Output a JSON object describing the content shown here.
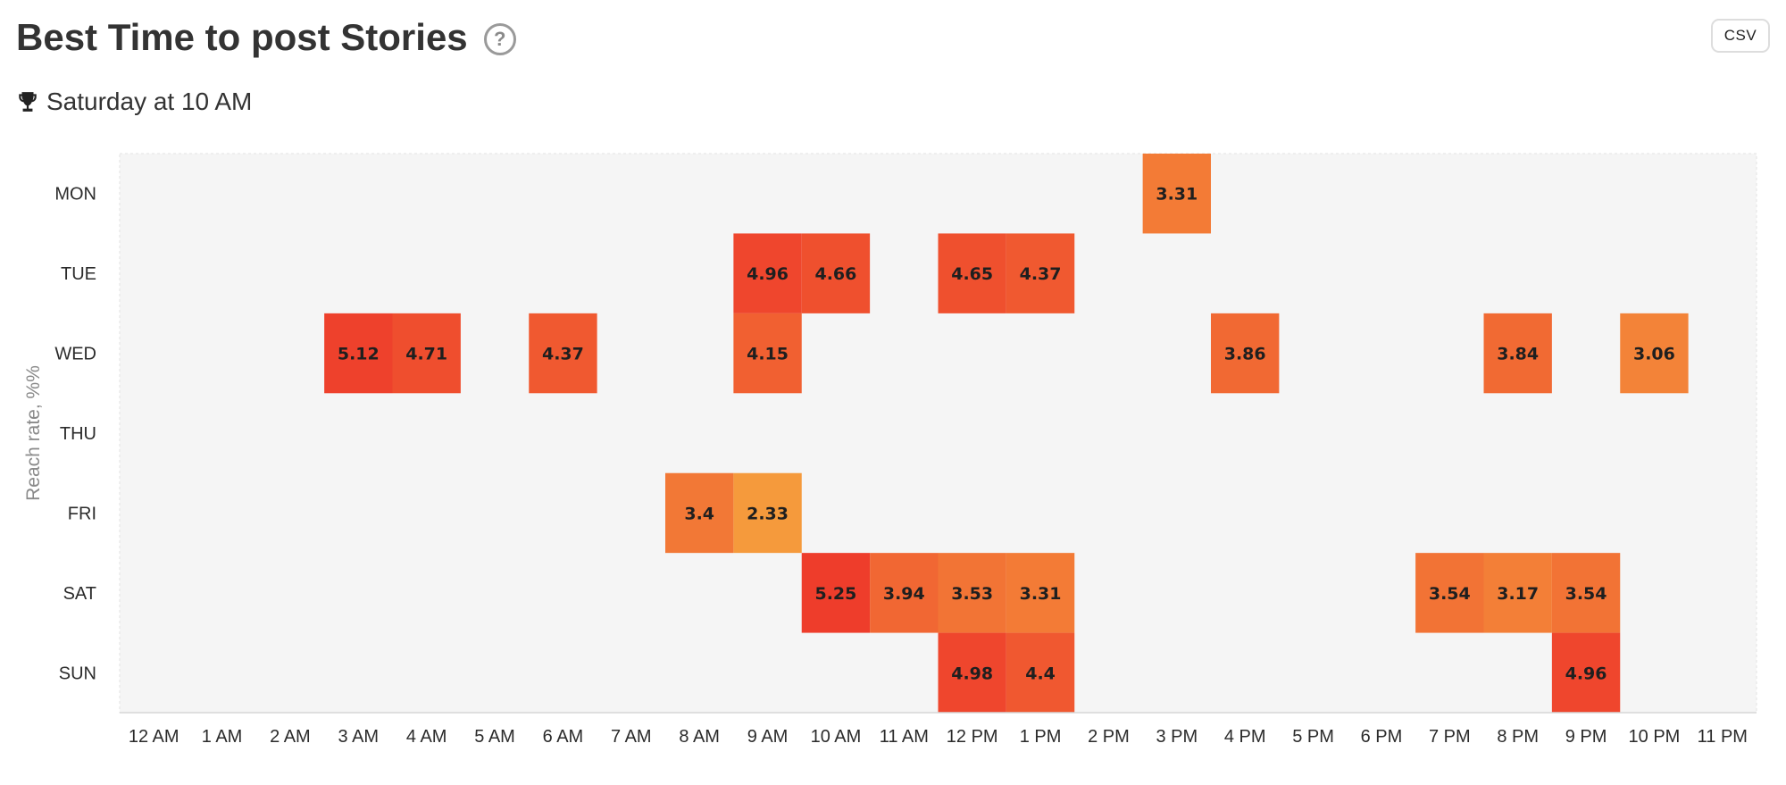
{
  "header": {
    "title": "Best Time to post Stories",
    "help_glyph": "?",
    "csv_label": "CSV"
  },
  "summary": {
    "best_time": "Saturday at 10 AM",
    "icon": "trophy-icon"
  },
  "chart_data": {
    "type": "heatmap",
    "ylabel": "Reach rate, %%",
    "rows": [
      "MON",
      "TUE",
      "WED",
      "THU",
      "FRI",
      "SAT",
      "SUN"
    ],
    "columns": [
      "12 AM",
      "1 AM",
      "2 AM",
      "3 AM",
      "4 AM",
      "5 AM",
      "6 AM",
      "7 AM",
      "8 AM",
      "9 AM",
      "10 AM",
      "11 AM",
      "12 PM",
      "1 PM",
      "2 PM",
      "3 PM",
      "4 PM",
      "5 PM",
      "6 PM",
      "7 PM",
      "8 PM",
      "9 PM",
      "10 PM",
      "11 PM"
    ],
    "cells": [
      {
        "row": "MON",
        "col": "3 PM",
        "value": "3.31"
      },
      {
        "row": "TUE",
        "col": "9 AM",
        "value": "4.96"
      },
      {
        "row": "TUE",
        "col": "10 AM",
        "value": "4.66"
      },
      {
        "row": "TUE",
        "col": "12 PM",
        "value": "4.65"
      },
      {
        "row": "TUE",
        "col": "1 PM",
        "value": "4.37"
      },
      {
        "row": "WED",
        "col": "3 AM",
        "value": "5.12"
      },
      {
        "row": "WED",
        "col": "4 AM",
        "value": "4.71"
      },
      {
        "row": "WED",
        "col": "6 AM",
        "value": "4.37"
      },
      {
        "row": "WED",
        "col": "9 AM",
        "value": "4.15"
      },
      {
        "row": "WED",
        "col": "4 PM",
        "value": "3.86"
      },
      {
        "row": "WED",
        "col": "8 PM",
        "value": "3.84"
      },
      {
        "row": "WED",
        "col": "10 PM",
        "value": "3.06"
      },
      {
        "row": "FRI",
        "col": "8 AM",
        "value": "3.4"
      },
      {
        "row": "FRI",
        "col": "9 AM",
        "value": "2.33"
      },
      {
        "row": "SAT",
        "col": "10 AM",
        "value": "5.25"
      },
      {
        "row": "SAT",
        "col": "11 AM",
        "value": "3.94"
      },
      {
        "row": "SAT",
        "col": "12 PM",
        "value": "3.53"
      },
      {
        "row": "SAT",
        "col": "1 PM",
        "value": "3.31"
      },
      {
        "row": "SAT",
        "col": "7 PM",
        "value": "3.54"
      },
      {
        "row": "SAT",
        "col": "8 PM",
        "value": "3.17"
      },
      {
        "row": "SAT",
        "col": "9 PM",
        "value": "3.54"
      },
      {
        "row": "SUN",
        "col": "12 PM",
        "value": "4.98"
      },
      {
        "row": "SUN",
        "col": "1 PM",
        "value": "4.4"
      },
      {
        "row": "SUN",
        "col": "9 PM",
        "value": "4.96"
      }
    ],
    "colors": {
      "low": "#f59a3c",
      "high": "#ee3d2b",
      "background": "#f5f5f5",
      "cell_text": "#1f1f1f"
    }
  }
}
